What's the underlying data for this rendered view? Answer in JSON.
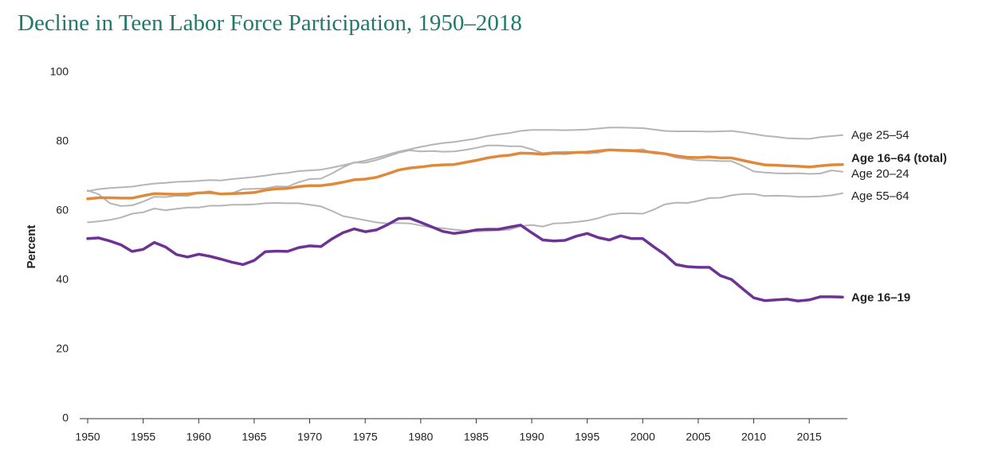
{
  "chart_data": {
    "type": "line",
    "title": "Decline in Teen Labor Force Participation, 1950–2018",
    "y_label": "Percent",
    "x": [
      1950,
      1951,
      1952,
      1953,
      1954,
      1955,
      1956,
      1957,
      1958,
      1959,
      1960,
      1961,
      1962,
      1963,
      1964,
      1965,
      1966,
      1967,
      1968,
      1969,
      1970,
      1971,
      1972,
      1973,
      1974,
      1975,
      1976,
      1977,
      1978,
      1979,
      1980,
      1981,
      1982,
      1983,
      1984,
      1985,
      1986,
      1987,
      1988,
      1989,
      1990,
      1991,
      1992,
      1993,
      1994,
      1995,
      1996,
      1997,
      1998,
      1999,
      2000,
      2001,
      2002,
      2003,
      2004,
      2005,
      2006,
      2007,
      2008,
      2009,
      2010,
      2011,
      2012,
      2013,
      2014,
      2015,
      2016,
      2017,
      2018
    ],
    "xlim": [
      1950,
      2018
    ],
    "xticks": [
      1950,
      1955,
      1960,
      1965,
      1970,
      1975,
      1980,
      1985,
      1990,
      1995,
      2000,
      2005,
      2010,
      2015
    ],
    "ylim": [
      0,
      100
    ],
    "yticks": [
      0,
      20,
      40,
      60,
      80,
      100
    ],
    "grid": false,
    "series": [
      {
        "name": "Age 25–54",
        "color": "#b5b5b5",
        "values": [
          65.7,
          66.3,
          66.6,
          66.8,
          67.0,
          67.5,
          67.9,
          68.1,
          68.4,
          68.5,
          68.7,
          68.9,
          68.8,
          69.2,
          69.5,
          69.8,
          70.2,
          70.7,
          71.0,
          71.5,
          71.7,
          71.9,
          72.5,
          73.2,
          73.9,
          74.5,
          75.3,
          76.2,
          77.1,
          77.8,
          78.5,
          79.1,
          79.6,
          79.9,
          80.4,
          80.9,
          81.6,
          82.1,
          82.5,
          83.1,
          83.4,
          83.4,
          83.4,
          83.3,
          83.4,
          83.5,
          83.8,
          84.1,
          84.1,
          84.0,
          83.9,
          83.5,
          83.1,
          83.0,
          83.0,
          83.0,
          82.9,
          83.0,
          83.1,
          82.7,
          82.2,
          81.7,
          81.4,
          81.0,
          80.9,
          80.8,
          81.3,
          81.6,
          81.9
        ]
      },
      {
        "name": "Age 20–24",
        "color": "#b5b5b5",
        "values": [
          65.9,
          64.8,
          62.2,
          61.4,
          61.6,
          62.7,
          64.1,
          64.0,
          64.4,
          64.3,
          65.2,
          65.7,
          64.9,
          65.1,
          66.3,
          66.4,
          66.5,
          67.1,
          67.0,
          68.3,
          69.2,
          69.3,
          70.8,
          72.6,
          74.0,
          73.9,
          74.7,
          75.7,
          76.8,
          77.5,
          77.2,
          77.3,
          77.1,
          77.2,
          77.6,
          78.2,
          78.9,
          78.9,
          78.7,
          78.7,
          77.8,
          76.7,
          77.0,
          77.1,
          77.0,
          76.6,
          76.8,
          77.6,
          77.5,
          77.5,
          77.8,
          76.6,
          76.4,
          75.4,
          75.0,
          74.6,
          74.6,
          74.4,
          74.4,
          73.0,
          71.4,
          71.1,
          70.9,
          70.8,
          70.9,
          70.7,
          70.8,
          71.7,
          71.3
        ]
      },
      {
        "name": "Age 55–64",
        "color": "#b5b5b5",
        "values": [
          56.7,
          57.0,
          57.4,
          58.1,
          59.2,
          59.6,
          60.7,
          60.2,
          60.6,
          61.0,
          61.0,
          61.5,
          61.5,
          61.8,
          61.8,
          61.9,
          62.2,
          62.3,
          62.2,
          62.2,
          61.8,
          61.3,
          60.0,
          58.5,
          57.9,
          57.3,
          56.7,
          56.4,
          56.5,
          56.4,
          55.8,
          55.2,
          55.0,
          54.6,
          54.3,
          54.1,
          54.2,
          54.4,
          54.6,
          55.6,
          55.9,
          55.5,
          56.4,
          56.5,
          56.8,
          57.2,
          57.9,
          58.9,
          59.3,
          59.3,
          59.2,
          60.4,
          61.9,
          62.4,
          62.3,
          62.9,
          63.7,
          63.8,
          64.5,
          64.9,
          64.9,
          64.3,
          64.4,
          64.3,
          64.1,
          64.1,
          64.2,
          64.5,
          65.1
        ]
      },
      {
        "name": "Age 16–64 (total)",
        "color": "#e0893a",
        "values": [
          63.5,
          63.8,
          63.8,
          63.7,
          63.7,
          64.4,
          65.0,
          64.9,
          64.8,
          64.9,
          65.2,
          65.3,
          64.9,
          65.0,
          65.1,
          65.3,
          66.0,
          66.4,
          66.5,
          67.0,
          67.3,
          67.3,
          67.7,
          68.3,
          69.0,
          69.2,
          69.7,
          70.7,
          71.8,
          72.4,
          72.7,
          73.1,
          73.3,
          73.4,
          74.0,
          74.6,
          75.3,
          75.8,
          76.1,
          76.7,
          76.6,
          76.4,
          76.7,
          76.6,
          76.9,
          77.0,
          77.3,
          77.6,
          77.5,
          77.4,
          77.2,
          76.9,
          76.5,
          75.9,
          75.5,
          75.4,
          75.6,
          75.3,
          75.3,
          74.6,
          73.9,
          73.3,
          73.2,
          73.0,
          72.9,
          72.7,
          73.0,
          73.3,
          73.4
        ]
      },
      {
        "name": "Age 16–19",
        "color": "#6e3294",
        "values": [
          52.0,
          52.2,
          51.3,
          50.2,
          48.3,
          48.9,
          50.9,
          49.6,
          47.4,
          46.7,
          47.5,
          46.9,
          46.1,
          45.2,
          44.5,
          45.7,
          48.2,
          48.4,
          48.3,
          49.4,
          49.9,
          49.7,
          51.9,
          53.7,
          54.8,
          54.0,
          54.5,
          56.0,
          57.8,
          57.9,
          56.7,
          55.4,
          54.1,
          53.5,
          53.9,
          54.5,
          54.7,
          54.7,
          55.3,
          55.9,
          53.7,
          51.6,
          51.3,
          51.5,
          52.7,
          53.5,
          52.3,
          51.6,
          52.8,
          52.0,
          52.0,
          49.6,
          47.4,
          44.5,
          43.9,
          43.7,
          43.7,
          41.3,
          40.2,
          37.5,
          34.9,
          34.1,
          34.3,
          34.5,
          34.0,
          34.3,
          35.2,
          35.2,
          35.1
        ]
      }
    ]
  }
}
